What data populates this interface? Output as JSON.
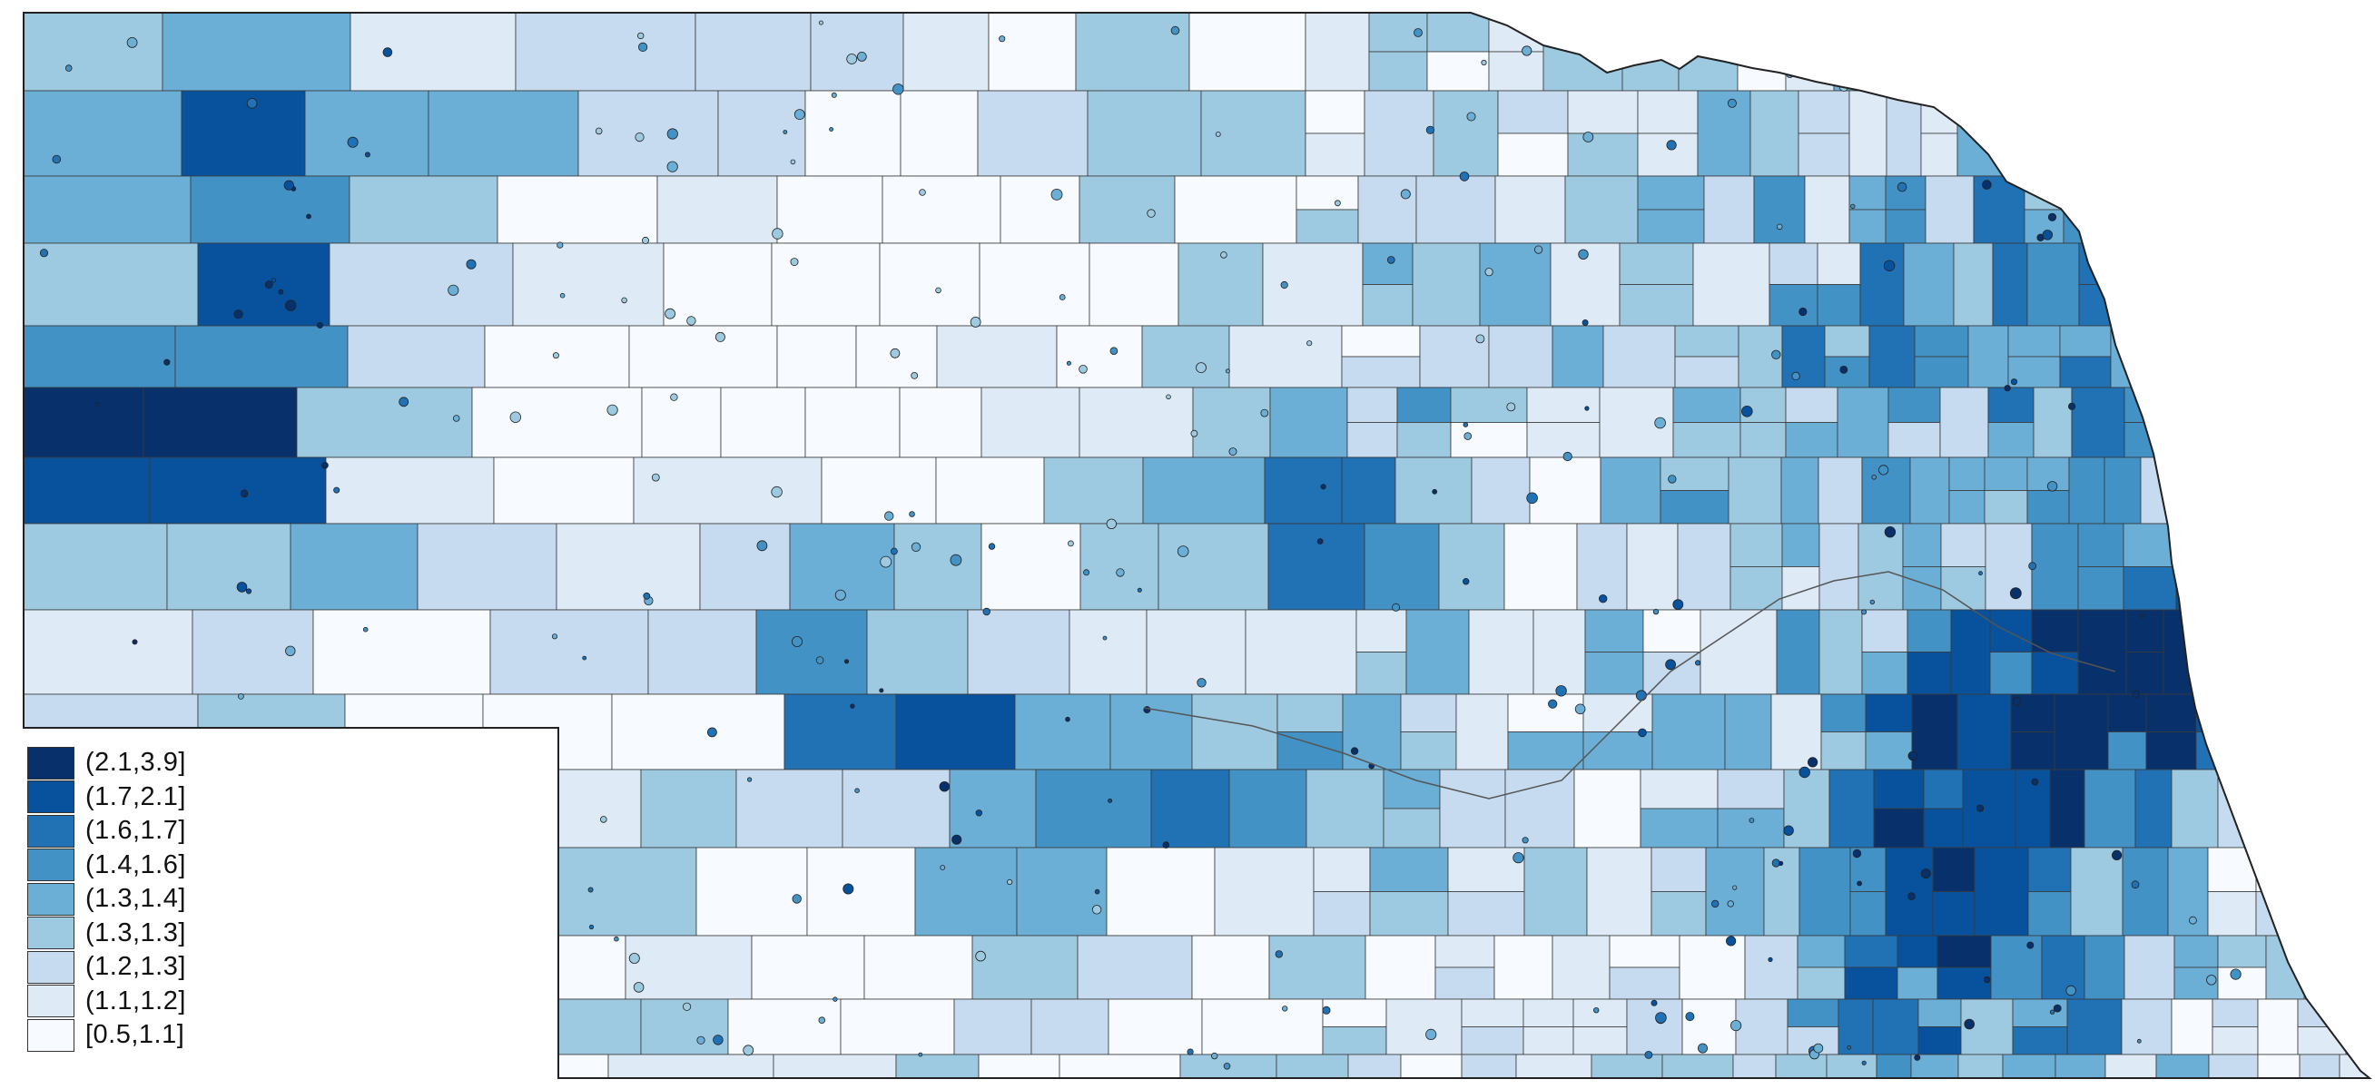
{
  "map": {
    "type": "choropleth",
    "region_description": "Nebraska",
    "colors": {
      "ocean": "#ffffff",
      "border": "#222222",
      "internal_border": "#3a3a3a"
    }
  },
  "legend": {
    "items": [
      {
        "label": "(2.1,3.9]",
        "color": "#08306b"
      },
      {
        "label": "(1.7,2.1]",
        "color": "#08519c"
      },
      {
        "label": "(1.6,1.7]",
        "color": "#2171b5"
      },
      {
        "label": "(1.4,1.6]",
        "color": "#4292c6"
      },
      {
        "label": "(1.3,1.4]",
        "color": "#6baed6"
      },
      {
        "label": "(1.3,1.3]",
        "color": "#9ecae1"
      },
      {
        "label": "(1.2,1.3]",
        "color": "#c6dbef"
      },
      {
        "label": "(1.1,1.2]",
        "color": "#deebf7"
      },
      {
        "label": "[0.5,1.1]",
        "color": "#f7fbff"
      }
    ]
  }
}
